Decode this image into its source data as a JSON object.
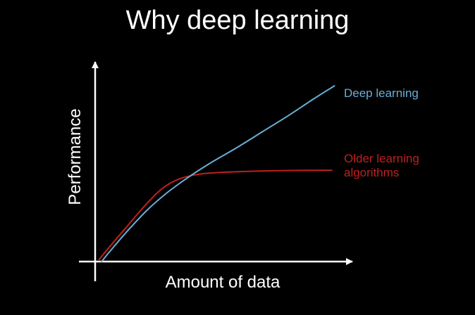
{
  "slide": {
    "title": "Why deep learning"
  },
  "chart_data": {
    "type": "line",
    "title": "Why deep learning",
    "xlabel": "Amount of data",
    "ylabel": "Performance",
    "xlim": [
      0,
      10
    ],
    "ylim": [
      0,
      10
    ],
    "grid": false,
    "axis_tick_labels": false,
    "series": [
      {
        "name": "Deep learning",
        "color": "#6aaed6",
        "x": [
          0.25,
          0.6,
          1.2,
          2.0,
          2.8,
          3.6,
          4.5,
          5.5,
          6.5,
          7.5,
          8.5,
          9.3
        ],
        "y": [
          0.0,
          0.55,
          1.45,
          2.55,
          3.45,
          4.2,
          4.95,
          5.7,
          6.5,
          7.3,
          8.15,
          8.8
        ]
      },
      {
        "name": "Older learning algorithms",
        "color": "#c0201f",
        "x": [
          0.15,
          0.6,
          1.2,
          1.9,
          2.6,
          3.3,
          4.2,
          5.5,
          7.0,
          8.5,
          9.2
        ],
        "y": [
          0.1,
          0.8,
          1.7,
          2.75,
          3.65,
          4.15,
          4.4,
          4.5,
          4.55,
          4.57,
          4.57
        ]
      }
    ],
    "legend_labels": [
      {
        "series": "Deep learning",
        "lines": [
          "Deep learning"
        ],
        "color": "#6aaed6"
      },
      {
        "series": "Older learning algorithms",
        "lines": [
          "Older learning",
          "algorithms"
        ],
        "color": "#c0201f"
      }
    ]
  }
}
